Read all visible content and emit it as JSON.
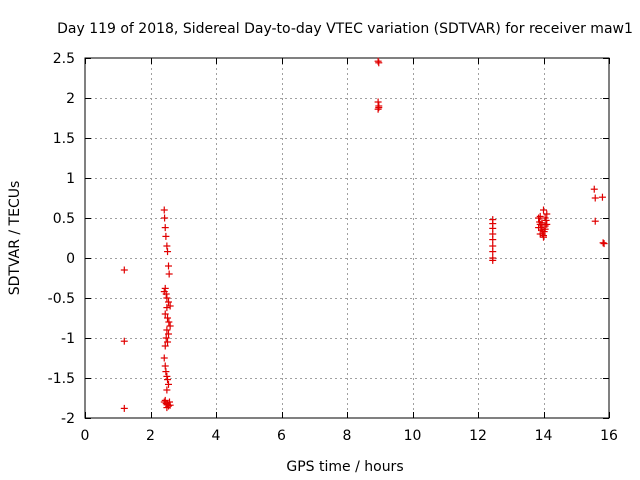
{
  "chart_data": {
    "type": "scatter",
    "title": "Day 119 of 2018, Sidereal Day-to-day VTEC variation (SDTVAR) for receiver maw1",
    "xlabel": "GPS time / hours",
    "ylabel": "SDTVAR / TECUs",
    "xlim": [
      0,
      16
    ],
    "ylim": [
      -2,
      2.5
    ],
    "xticks": [
      0,
      2,
      4,
      6,
      8,
      10,
      12,
      14,
      16
    ],
    "xtick_labels": [
      "0",
      "2",
      "4",
      "6",
      "8",
      "10",
      "12",
      "14",
      "16"
    ],
    "yticks": [
      -2,
      -1.5,
      -1,
      -0.5,
      0,
      0.5,
      1,
      1.5,
      2,
      2.5
    ],
    "ytick_labels": [
      "-2",
      "-1.5",
      "-1",
      "-0.5",
      "0",
      "0.5",
      "1",
      "1.5",
      "2",
      "2.5"
    ],
    "grid": true,
    "marker": "+",
    "color": "#e00000",
    "series": [
      {
        "name": "maw1",
        "points": [
          [
            1.2,
            -0.15
          ],
          [
            1.2,
            -1.04
          ],
          [
            1.2,
            -1.88
          ],
          [
            2.42,
            0.6
          ],
          [
            2.43,
            0.5
          ],
          [
            2.45,
            0.38
          ],
          [
            2.47,
            0.27
          ],
          [
            2.5,
            0.15
          ],
          [
            2.52,
            0.08
          ],
          [
            2.55,
            -0.1
          ],
          [
            2.57,
            -0.2
          ],
          [
            2.45,
            -0.38
          ],
          [
            2.42,
            -0.42
          ],
          [
            2.48,
            -0.45
          ],
          [
            2.5,
            -0.5
          ],
          [
            2.55,
            -0.55
          ],
          [
            2.6,
            -0.6
          ],
          [
            2.5,
            -0.62
          ],
          [
            2.45,
            -0.7
          ],
          [
            2.52,
            -0.75
          ],
          [
            2.56,
            -0.8
          ],
          [
            2.6,
            -0.85
          ],
          [
            2.5,
            -0.9
          ],
          [
            2.55,
            -0.95
          ],
          [
            2.48,
            -1.0
          ],
          [
            2.52,
            -1.05
          ],
          [
            2.45,
            -1.1
          ],
          [
            2.42,
            -1.25
          ],
          [
            2.45,
            -1.35
          ],
          [
            2.47,
            -1.42
          ],
          [
            2.5,
            -1.48
          ],
          [
            2.52,
            -1.52
          ],
          [
            2.55,
            -1.58
          ],
          [
            2.5,
            -1.65
          ],
          [
            2.45,
            -1.78
          ],
          [
            2.48,
            -1.82
          ],
          [
            2.52,
            -1.83
          ],
          [
            2.55,
            -1.85
          ],
          [
            2.58,
            -1.8
          ],
          [
            2.6,
            -1.84
          ],
          [
            2.42,
            -1.8
          ],
          [
            2.5,
            -1.87
          ],
          [
            8.95,
            2.46
          ],
          [
            8.97,
            2.44
          ],
          [
            8.95,
            1.95
          ],
          [
            8.97,
            1.9
          ],
          [
            8.95,
            1.86
          ],
          [
            8.97,
            1.88
          ],
          [
            12.45,
            0.48
          ],
          [
            12.45,
            0.43
          ],
          [
            12.45,
            0.37
          ],
          [
            12.45,
            0.3
          ],
          [
            12.45,
            0.23
          ],
          [
            12.45,
            0.15
          ],
          [
            12.45,
            0.08
          ],
          [
            12.45,
            0.0
          ],
          [
            12.45,
            -0.03
          ],
          [
            13.85,
            0.5
          ],
          [
            13.88,
            0.45
          ],
          [
            13.9,
            0.42
          ],
          [
            13.92,
            0.38
          ],
          [
            13.95,
            0.35
          ],
          [
            13.97,
            0.3
          ],
          [
            14.0,
            0.28
          ],
          [
            14.02,
            0.33
          ],
          [
            14.05,
            0.4
          ],
          [
            14.08,
            0.47
          ],
          [
            14.1,
            0.55
          ],
          [
            14.0,
            0.6
          ],
          [
            13.9,
            0.52
          ],
          [
            13.95,
            0.44
          ],
          [
            14.05,
            0.36
          ],
          [
            13.9,
            0.3
          ],
          [
            14.0,
            0.26
          ],
          [
            13.85,
            0.38
          ],
          [
            14.1,
            0.42
          ],
          [
            14.05,
            0.5
          ],
          [
            15.55,
            0.86
          ],
          [
            15.58,
            0.75
          ],
          [
            15.58,
            0.46
          ],
          [
            15.8,
            0.76
          ],
          [
            15.82,
            0.19
          ],
          [
            15.85,
            0.18
          ]
        ]
      }
    ]
  }
}
